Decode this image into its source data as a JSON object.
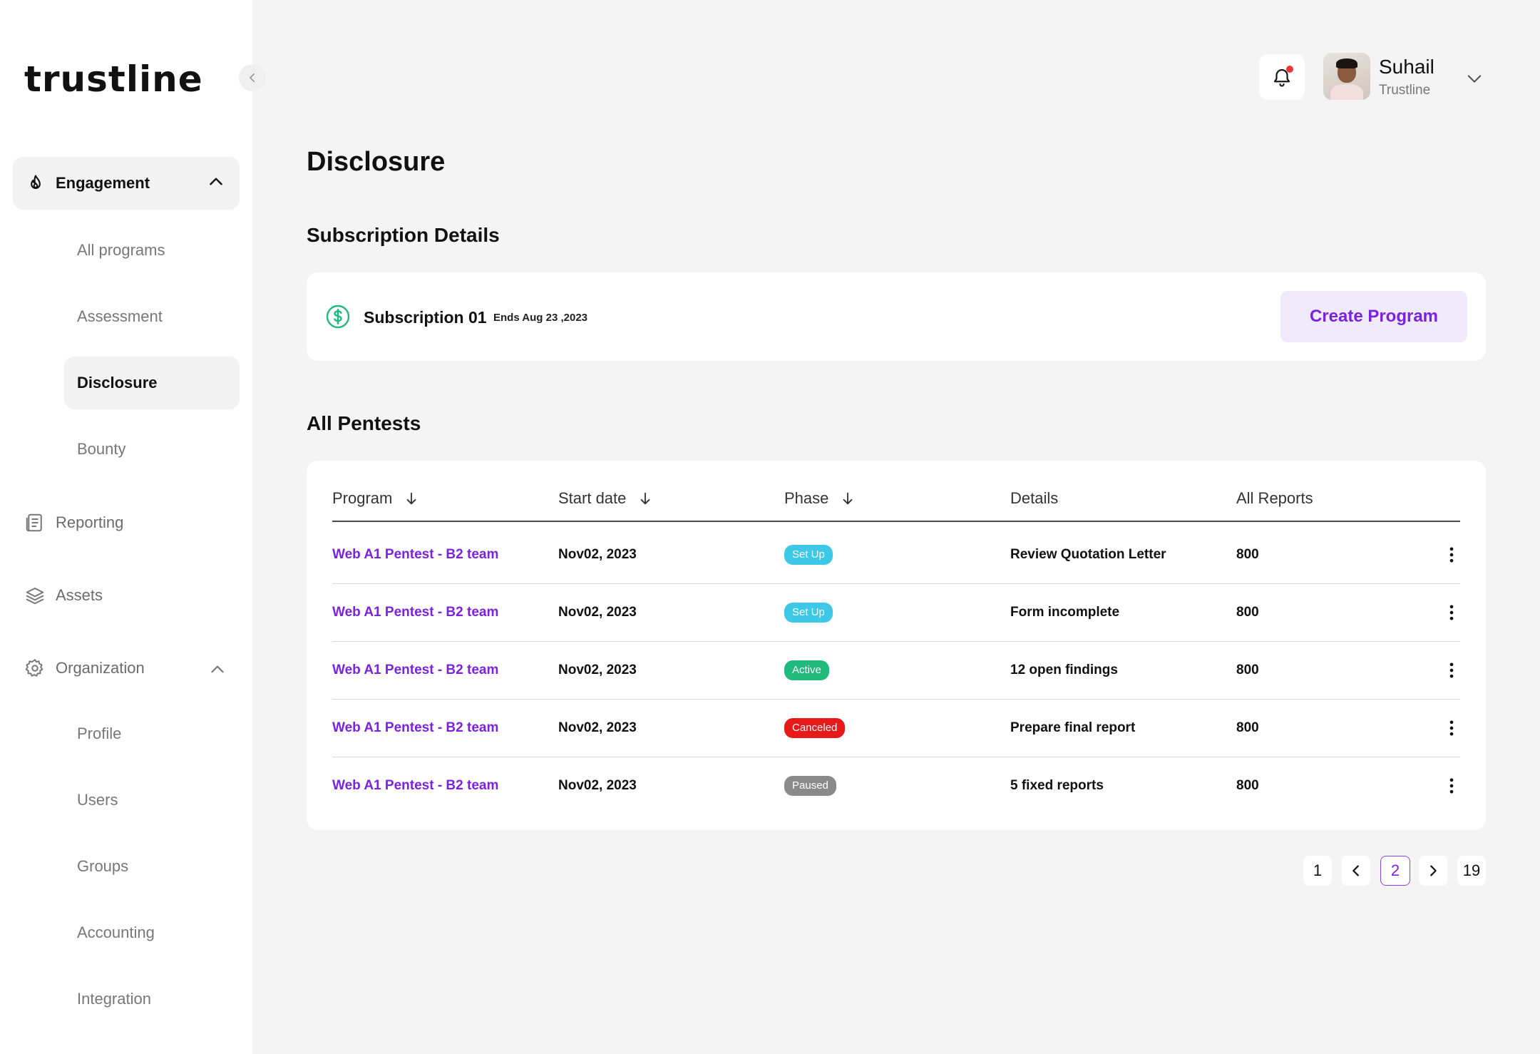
{
  "brand": {
    "logo_text": "trustline"
  },
  "sidebar": {
    "engagement": {
      "label": "Engagement",
      "items": [
        {
          "label": "All programs"
        },
        {
          "label": "Assessment"
        },
        {
          "label": "Disclosure"
        },
        {
          "label": "Bounty"
        }
      ],
      "active_item": "Disclosure"
    },
    "reporting": {
      "label": "Reporting"
    },
    "assets": {
      "label": "Assets"
    },
    "organization": {
      "label": "Organization",
      "items": [
        {
          "label": "Profile"
        },
        {
          "label": "Users"
        },
        {
          "label": "Groups"
        },
        {
          "label": "Accounting"
        },
        {
          "label": "Integration"
        }
      ]
    }
  },
  "header": {
    "user": {
      "name": "Suhail",
      "org": "Trustline"
    },
    "notification_dot_color": "#e53935"
  },
  "page": {
    "title": "Disclosure",
    "subscription_section_title": "Subscription Details",
    "subscription": {
      "name": "Subscription 01",
      "ends": "Ends Aug 23 ,2023",
      "create_button": "Create Program"
    },
    "pentests_section_title": "All Pentests"
  },
  "table": {
    "columns": [
      {
        "label": "Program",
        "sortable": true
      },
      {
        "label": "Start date",
        "sortable": true
      },
      {
        "label": "Phase",
        "sortable": true
      },
      {
        "label": "Details",
        "sortable": false
      },
      {
        "label": "All Reports",
        "sortable": false
      }
    ],
    "rows": [
      {
        "program": "Web A1 Pentest - B2 team",
        "start_date": "Nov02, 2023",
        "phase": "Set Up",
        "details": "Review Quotation Letter",
        "reports": "800"
      },
      {
        "program": "Web A1 Pentest - B2 team",
        "start_date": "Nov02, 2023",
        "phase": "Set Up",
        "details": "Form incomplete",
        "reports": "800"
      },
      {
        "program": "Web A1 Pentest - B2 team",
        "start_date": "Nov02, 2023",
        "phase": "Active",
        "details": " 12 open findings",
        "reports": "800"
      },
      {
        "program": "Web A1 Pentest - B2 team",
        "start_date": "Nov02, 2023",
        "phase": "Canceled",
        "details": "Prepare final report",
        "reports": "800"
      },
      {
        "program": "Web A1 Pentest - B2 team",
        "start_date": "Nov02, 2023",
        "phase": "Paused",
        "details": "5 fixed reports",
        "reports": "800"
      }
    ]
  },
  "phase_colors": {
    "Set Up": "#3cc8e6",
    "Active": "#1fba7c",
    "Canceled": "#e81919",
    "Paused": "#8a8a8a"
  },
  "pagination": {
    "first": "1",
    "current": "2",
    "last": "19"
  },
  "colors": {
    "accent": "#7b22e0",
    "accent_soft": "#efeafc",
    "subscription_icon": "#1fba7c"
  }
}
